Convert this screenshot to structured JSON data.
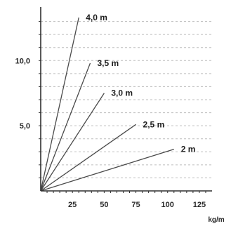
{
  "chart_data": {
    "type": "line",
    "title": "",
    "xlabel": "kg/m",
    "ylabel": "",
    "xlim": [
      0,
      135
    ],
    "ylim": [
      0,
      14
    ],
    "grid": true,
    "x_ticks": [
      {
        "value": 25,
        "label": "25"
      },
      {
        "value": 50,
        "label": "50"
      },
      {
        "value": 75,
        "label": "75"
      },
      {
        "value": 100,
        "label": "100"
      },
      {
        "value": 125,
        "label": "125"
      }
    ],
    "y_ticks": [
      {
        "value": 5,
        "label": "5,0"
      },
      {
        "value": 10,
        "label": "10,0"
      }
    ],
    "series": [
      {
        "name": "4,0 m",
        "x": [
          0,
          30
        ],
        "y": [
          0,
          13.3
        ]
      },
      {
        "name": "3,5 m",
        "x": [
          0,
          39
        ],
        "y": [
          0,
          9.8
        ]
      },
      {
        "name": "3,0 m",
        "x": [
          0,
          50
        ],
        "y": [
          0,
          7.5
        ]
      },
      {
        "name": "2,5 m",
        "x": [
          0,
          75
        ],
        "y": [
          0,
          5.1
        ]
      },
      {
        "name": "2 m",
        "x": [
          0,
          105
        ],
        "y": [
          0,
          3.2
        ]
      }
    ],
    "line_color": "#4a4a4a",
    "grid_color": "#bdbdbd",
    "axis_color": "#2f2f2f"
  }
}
